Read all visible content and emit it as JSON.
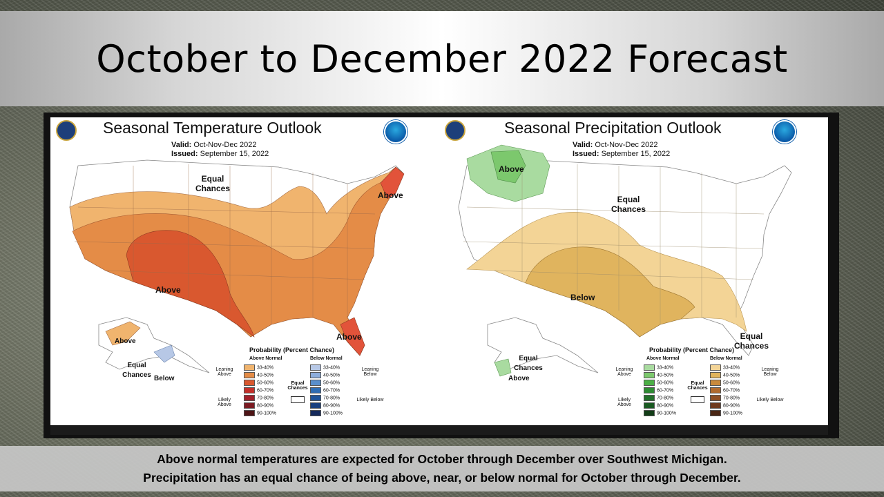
{
  "slide": {
    "title": "October to December 2022 Forecast",
    "caption_line1": "Above normal temperatures are expected for October through December over Southwest Michigan.",
    "caption_line2": "Precipitation has an equal chance of being above, near, or below normal for October through December."
  },
  "temperature_outlook": {
    "title": "Seasonal Temperature Outlook",
    "valid_label": "Valid:",
    "valid_value": "Oct-Nov-Dec 2022",
    "issued_label": "Issued:",
    "issued_value": "September 15, 2022",
    "labels": {
      "equal_chances": "Equal Chances",
      "above_northeast": "Above",
      "above_southwest": "Above",
      "above_florida": "Above",
      "above_alaska": "Above",
      "equal_chances_alaska": "Equal Chances",
      "below_alaska": "Below"
    },
    "legend": {
      "title": "Probability (Percent Chance)",
      "col_left": "Above Normal",
      "col_right": "Below Normal",
      "leaning_left": "Leaning Above",
      "likely_left": "Likely Above",
      "leaning_right": "Leaning Below",
      "likely_right": "Likely Below",
      "equal": "Equal Chances",
      "ranges": [
        "33-40%",
        "40-50%",
        "50-60%",
        "60-70%",
        "70-80%",
        "80-90%",
        "90-100%"
      ],
      "left_colors": [
        "#f0b46e",
        "#e48c47",
        "#d9582f",
        "#c3302a",
        "#a2202a",
        "#7b1a22",
        "#4e1416"
      ],
      "right_colors": [
        "#b7c8e6",
        "#8eaedb",
        "#5a8fcb",
        "#2f6db3",
        "#1f549a",
        "#183f7e",
        "#152a5c"
      ]
    },
    "colors": {
      "lean": "#f0b46e",
      "mid": "#e48c47",
      "strong": "#d9582f",
      "northeast_strong": "#e2533a"
    }
  },
  "precipitation_outlook": {
    "title": "Seasonal Precipitation Outlook",
    "valid_label": "Valid:",
    "valid_value": "Oct-Nov-Dec 2022",
    "issued_label": "Issued:",
    "issued_value": "September 15, 2022",
    "labels": {
      "above_northwest": "Above",
      "equal_chances": "Equal Chances",
      "below_south": "Below",
      "equal_chances_southeast": "Equal Chances",
      "equal_chances_alaska": "Equal Chances",
      "above_alaska": "Above"
    },
    "legend": {
      "title": "Probability (Percent Chance)",
      "col_left": "Above Normal",
      "col_right": "Below Normal",
      "leaning_left": "Leaning Above",
      "likely_left": "Likely Above",
      "leaning_right": "Leaning Below",
      "likely_right": "Likely Below",
      "equal": "Equal Chances",
      "ranges": [
        "33-40%",
        "40-50%",
        "50-60%",
        "60-70%",
        "70-80%",
        "80-90%",
        "90-100%"
      ],
      "left_colors": [
        "#a9dba0",
        "#7cc86d",
        "#4caf46",
        "#2e8b33",
        "#22702a",
        "#1a5a22",
        "#123d17"
      ],
      "right_colors": [
        "#f3d496",
        "#e0b45e",
        "#c98a3d",
        "#b06a2f",
        "#8f4f25",
        "#6e3a1e",
        "#4a2614"
      ]
    },
    "colors": {
      "above": "#a9dba0",
      "above_mid": "#7cc86d",
      "lean_dry": "#f3d496",
      "dry": "#e0b45e"
    }
  }
}
